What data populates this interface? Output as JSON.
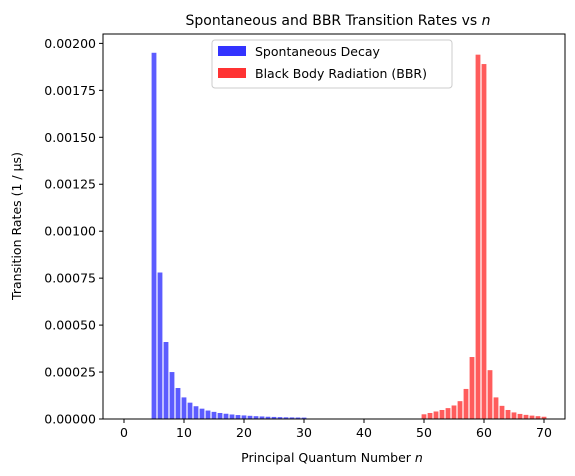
{
  "chart_data": {
    "type": "bar",
    "title_main": "Spontaneous and BBR Transition Rates vs ",
    "title_var": "n",
    "xlabel_main": "Principal Quantum Number ",
    "xlabel_var": "n",
    "ylabel": "Transition Rates (1 / μs)",
    "xlim": [
      -3.5,
      73.5
    ],
    "ylim": [
      0,
      0.00205
    ],
    "xticks": [
      0,
      10,
      20,
      30,
      40,
      50,
      60,
      70
    ],
    "xtick_labels": [
      "0",
      "10",
      "20",
      "30",
      "40",
      "50",
      "60",
      "70"
    ],
    "yticks": [
      0,
      0.00025,
      0.0005,
      0.00075,
      0.001,
      0.00125,
      0.0015,
      0.00175,
      0.002
    ],
    "ytick_labels": [
      "0.00000",
      "0.00025",
      "0.00050",
      "0.00075",
      "0.00100",
      "0.00125",
      "0.00150",
      "0.00175",
      "0.00200"
    ],
    "legend_position": "top-center",
    "grid": false,
    "series": [
      {
        "name": "Spontaneous Decay",
        "color": "#3333ff",
        "x": [
          5,
          6,
          7,
          8,
          9,
          10,
          11,
          12,
          13,
          14,
          15,
          16,
          17,
          18,
          19,
          20,
          21,
          22,
          23,
          24,
          25,
          26,
          27,
          28,
          29,
          30
        ],
        "values": [
          0.00195,
          0.00078,
          0.00041,
          0.00025,
          0.000165,
          0.000115,
          8.7e-05,
          6.8e-05,
          5.5e-05,
          4.5e-05,
          3.8e-05,
          3.2e-05,
          2.8e-05,
          2.4e-05,
          2.1e-05,
          1.9e-05,
          1.7e-05,
          1.5e-05,
          1.35e-05,
          1.2e-05,
          1.1e-05,
          1e-05,
          9e-06,
          8.5e-06,
          8e-06,
          7.5e-06
        ]
      },
      {
        "name": "Black Body Radiation (BBR)",
        "color": "#ff3333",
        "x": [
          50,
          51,
          52,
          53,
          54,
          55,
          56,
          57,
          58,
          59,
          60,
          61,
          62,
          63,
          64,
          65,
          66,
          67,
          68,
          69,
          70
        ],
        "values": [
          2.5e-05,
          3.2e-05,
          4e-05,
          4.8e-05,
          5.8e-05,
          7.2e-05,
          9.5e-05,
          0.00016,
          0.00033,
          0.00194,
          0.00189,
          0.00026,
          0.000115,
          7e-05,
          4.8e-05,
          3.5e-05,
          2.7e-05,
          2.2e-05,
          1.8e-05,
          1.5e-05,
          1.2e-05
        ]
      }
    ]
  }
}
